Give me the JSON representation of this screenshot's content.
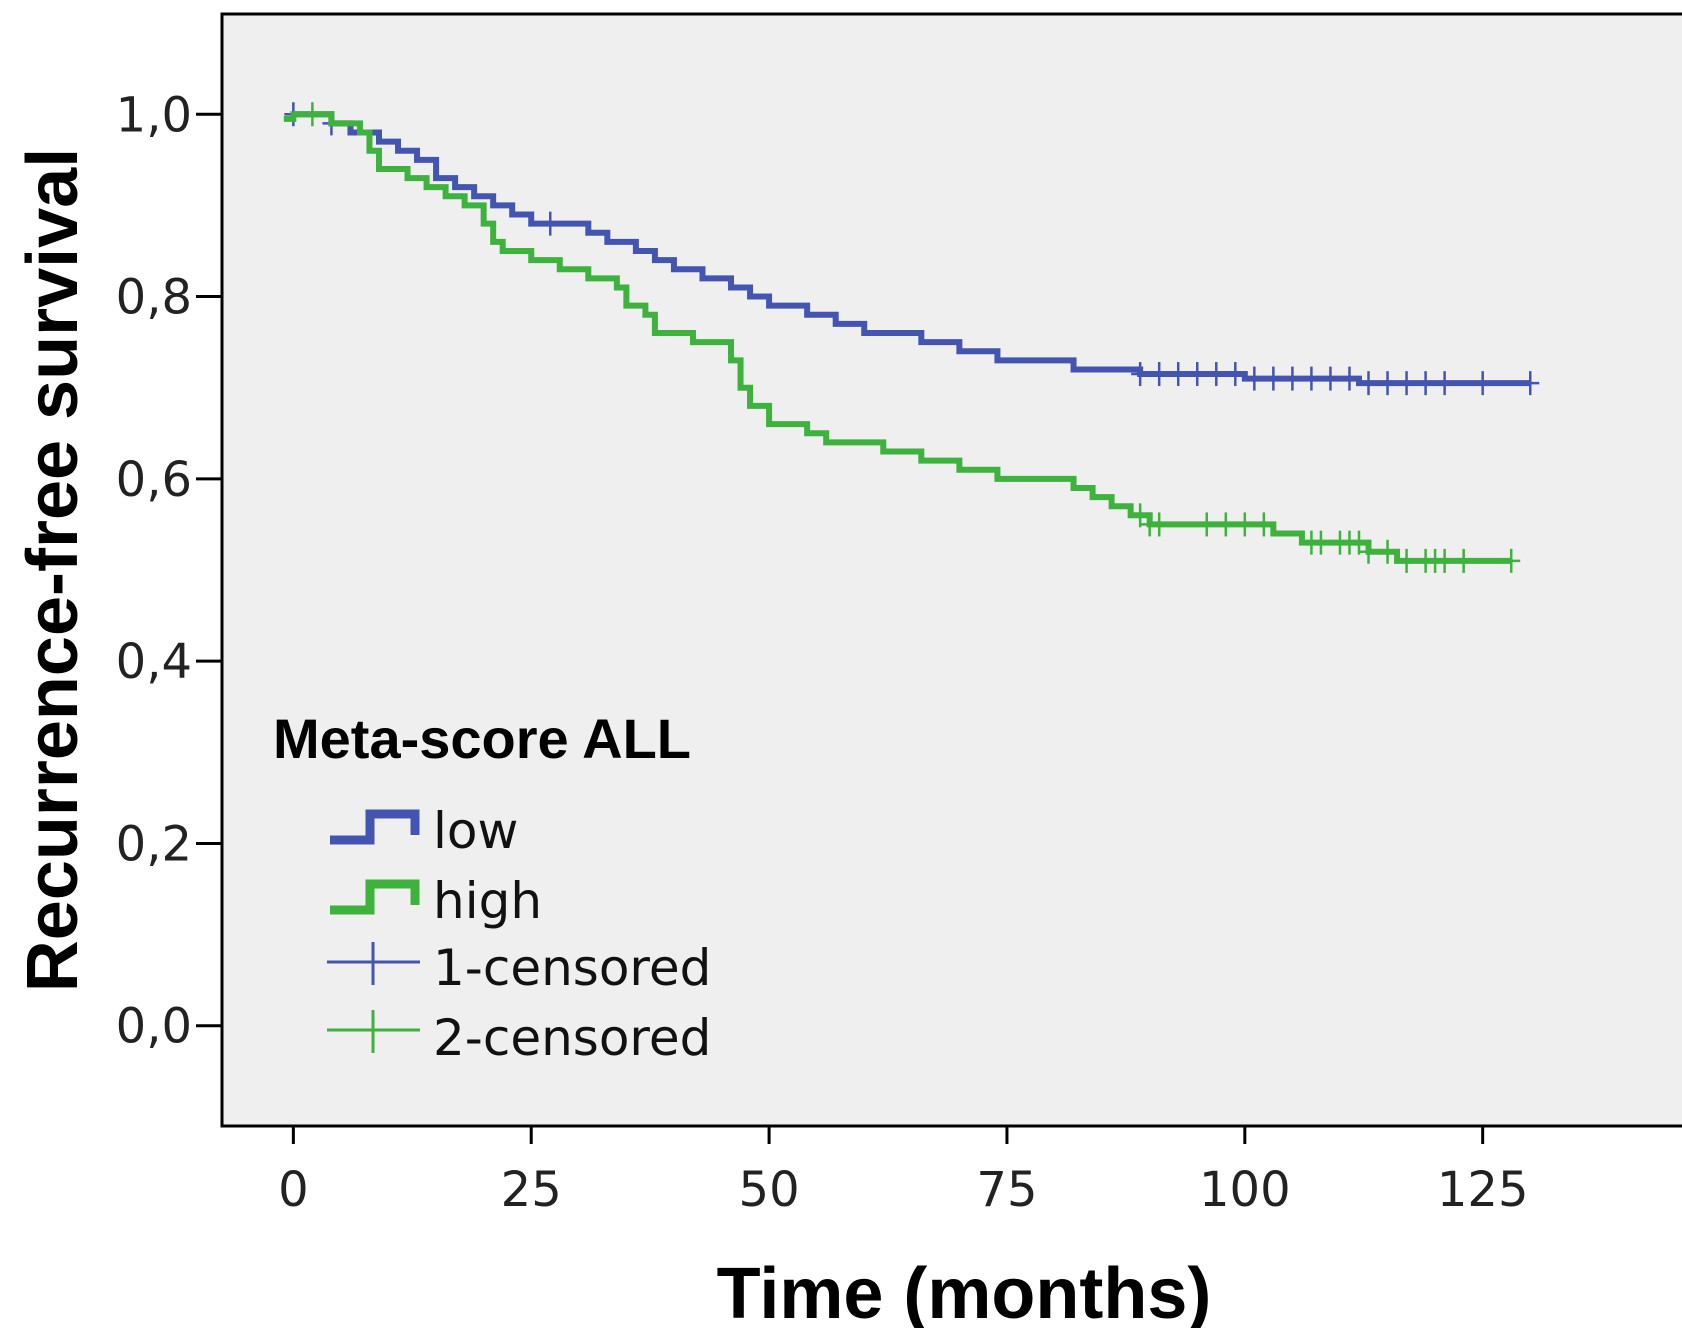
{
  "chart_data": {
    "type": "line",
    "xlabel": "Time (months)",
    "ylabel": "Recurrence-free survival",
    "xlim": [
      -7.5,
      147
    ],
    "ylim": [
      -0.11,
      1.11
    ],
    "x_ticks": [
      0,
      25,
      50,
      75,
      100,
      125
    ],
    "x_tick_labels": [
      "0",
      "25",
      "50",
      "75",
      "100",
      "125"
    ],
    "y_ticks": [
      0.0,
      0.2,
      0.4,
      0.6,
      0.8,
      1.0
    ],
    "y_tick_labels": [
      "0,0",
      "0,2",
      "0,4",
      "0,6",
      "0,8",
      "1,0"
    ],
    "grid": false,
    "background_color": "#efefef",
    "legend": {
      "title": "Meta-score ALL",
      "position": "bottom-left",
      "entries": [
        "low",
        "high",
        "1-censored",
        "2-censored"
      ]
    },
    "series": [
      {
        "name": "low",
        "color": "#4355b0",
        "steps": [
          [
            0,
            1.0
          ],
          [
            4,
            0.99
          ],
          [
            6,
            0.98
          ],
          [
            9,
            0.97
          ],
          [
            11,
            0.96
          ],
          [
            13,
            0.95
          ],
          [
            15,
            0.93
          ],
          [
            17,
            0.92
          ],
          [
            19,
            0.91
          ],
          [
            21,
            0.9
          ],
          [
            23,
            0.89
          ],
          [
            25,
            0.88
          ],
          [
            31,
            0.87
          ],
          [
            33,
            0.86
          ],
          [
            36,
            0.85
          ],
          [
            38,
            0.84
          ],
          [
            40,
            0.83
          ],
          [
            43,
            0.82
          ],
          [
            46,
            0.81
          ],
          [
            48,
            0.8
          ],
          [
            50,
            0.79
          ],
          [
            54,
            0.78
          ],
          [
            57,
            0.77
          ],
          [
            60,
            0.76
          ],
          [
            66,
            0.75
          ],
          [
            70,
            0.74
          ],
          [
            74,
            0.73
          ],
          [
            82,
            0.72
          ],
          [
            89,
            0.715
          ],
          [
            100,
            0.71
          ],
          [
            112,
            0.705
          ],
          [
            130,
            0.705
          ]
        ],
        "censored": [
          0,
          4,
          27,
          89,
          91,
          93,
          95,
          97,
          99,
          101,
          103,
          105,
          107,
          109,
          111,
          113,
          115,
          117,
          119,
          121,
          125,
          130
        ]
      },
      {
        "name": "high",
        "color": "#3db23d",
        "steps": [
          [
            -1,
            0.995
          ],
          [
            0,
            1.0
          ],
          [
            4,
            0.99
          ],
          [
            7,
            0.98
          ],
          [
            8,
            0.96
          ],
          [
            9,
            0.94
          ],
          [
            12,
            0.93
          ],
          [
            14,
            0.92
          ],
          [
            16,
            0.91
          ],
          [
            18,
            0.9
          ],
          [
            20,
            0.88
          ],
          [
            21,
            0.86
          ],
          [
            22,
            0.85
          ],
          [
            25,
            0.84
          ],
          [
            28,
            0.83
          ],
          [
            31,
            0.82
          ],
          [
            34,
            0.81
          ],
          [
            35,
            0.79
          ],
          [
            37,
            0.78
          ],
          [
            38,
            0.76
          ],
          [
            42,
            0.75
          ],
          [
            46,
            0.73
          ],
          [
            47,
            0.7
          ],
          [
            48,
            0.68
          ],
          [
            50,
            0.66
          ],
          [
            54,
            0.65
          ],
          [
            56,
            0.64
          ],
          [
            62,
            0.63
          ],
          [
            66,
            0.62
          ],
          [
            70,
            0.61
          ],
          [
            74,
            0.6
          ],
          [
            82,
            0.59
          ],
          [
            84,
            0.58
          ],
          [
            86,
            0.57
          ],
          [
            88,
            0.56
          ],
          [
            90,
            0.55
          ],
          [
            103,
            0.54
          ],
          [
            106,
            0.53
          ],
          [
            113,
            0.52
          ],
          [
            116,
            0.51
          ],
          [
            128,
            0.51
          ]
        ],
        "censored": [
          2,
          89,
          90,
          91,
          96,
          98,
          100,
          102,
          107,
          108,
          110,
          111,
          112,
          113,
          115,
          117,
          119,
          120,
          121,
          123,
          128
        ]
      }
    ]
  }
}
